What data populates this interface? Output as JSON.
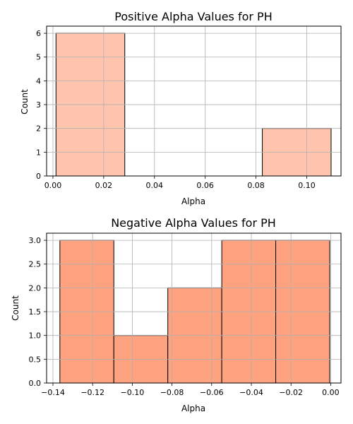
{
  "chart_data": [
    {
      "type": "bar",
      "title": "Positive Alpha Values for PH",
      "xlabel": "Alpha",
      "ylabel": "Count",
      "xlim": [
        -0.0025,
        0.1135
      ],
      "ylim": [
        0,
        6.3
      ],
      "xticks": [
        0.0,
        0.02,
        0.04,
        0.06,
        0.08,
        0.1
      ],
      "xtick_labels": [
        "0.00",
        "0.02",
        "0.04",
        "0.06",
        "0.08",
        "0.10"
      ],
      "yticks": [
        0,
        1,
        2,
        3,
        4,
        5,
        6
      ],
      "ytick_labels": [
        "0",
        "1",
        "2",
        "3",
        "4",
        "5",
        "6"
      ],
      "bins": [
        {
          "x0": 0.0012,
          "x1": 0.0283,
          "count": 6
        },
        {
          "x0": 0.0283,
          "x1": 0.0554,
          "count": 0
        },
        {
          "x0": 0.0554,
          "x1": 0.0825,
          "count": 0
        },
        {
          "x0": 0.0825,
          "x1": 0.1096,
          "count": 2
        }
      ],
      "bar_color": "#ffc4ad",
      "edge_color": "#000000",
      "grid": true
    },
    {
      "type": "bar",
      "title": "Negative Alpha Values for PH",
      "xlabel": "Alpha",
      "ylabel": "Count",
      "xlim": [
        -0.1432,
        0.0052
      ],
      "ylim": [
        0,
        3.15
      ],
      "xticks": [
        -0.14,
        -0.12,
        -0.1,
        -0.08,
        -0.06,
        -0.04,
        -0.02,
        0.0
      ],
      "xtick_labels": [
        "−0.14",
        "−0.12",
        "−0.10",
        "−0.08",
        "−0.06",
        "−0.04",
        "−0.02",
        "0.00"
      ],
      "yticks": [
        0,
        0.5,
        1.0,
        1.5,
        2.0,
        2.5,
        3.0
      ],
      "ytick_labels": [
        "0.0",
        "0.5",
        "1.0",
        "1.5",
        "2.0",
        "2.5",
        "3.0"
      ],
      "bins": [
        {
          "x0": -0.1365,
          "x1": -0.1093,
          "count": 3
        },
        {
          "x0": -0.1093,
          "x1": -0.0821,
          "count": 1
        },
        {
          "x0": -0.0821,
          "x1": -0.0549,
          "count": 2
        },
        {
          "x0": -0.0549,
          "x1": -0.0277,
          "count": 3
        },
        {
          "x0": -0.0277,
          "x1": -0.0005,
          "count": 3
        }
      ],
      "bar_color": "#ffa27f",
      "edge_color": "#000000",
      "grid": true
    }
  ]
}
